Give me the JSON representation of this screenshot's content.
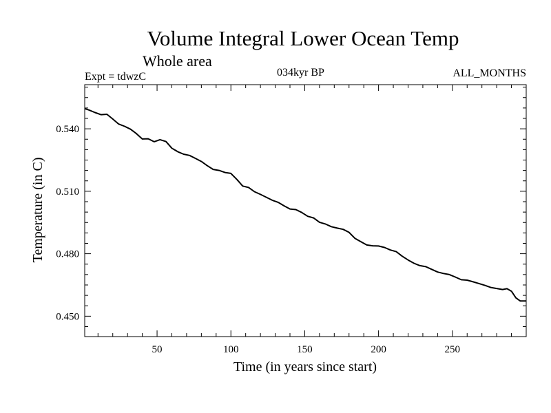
{
  "header": {
    "title": "Volume Integral Lower Ocean Temp",
    "subtitle": "Whole area",
    "left_note": "Expt = tdwzC",
    "center_note": "034kyr BP",
    "right_note": "ALL_MONTHS"
  },
  "chart_data": {
    "type": "line",
    "title": "Volume Integral Lower Ocean Temp",
    "subtitle": "Whole area",
    "xlabel": "Time (in years since start)",
    "ylabel": "Temperature (in C)",
    "xlim": [
      1,
      300
    ],
    "ylim": [
      0.4402,
      0.5612
    ],
    "x_ticks": [
      50,
      100,
      150,
      200,
      250
    ],
    "y_ticks": [
      0.45,
      0.48,
      0.51,
      0.54
    ],
    "y_tick_labels": [
      "0.450",
      "0.480",
      "0.510",
      "0.540"
    ],
    "grid": false,
    "series": [
      {
        "color": "#000000",
        "x": [
          1,
          4,
          8,
          12,
          16,
          20,
          24,
          28,
          32,
          36,
          40,
          44,
          48,
          52,
          56,
          60,
          64,
          68,
          72,
          76,
          80,
          84,
          88,
          92,
          96,
          100,
          104,
          108,
          112,
          116,
          120,
          124,
          128,
          132,
          136,
          140,
          144,
          148,
          152,
          156,
          160,
          164,
          168,
          172,
          176,
          180,
          184,
          188,
          192,
          196,
          200,
          204,
          208,
          212,
          216,
          220,
          224,
          228,
          232,
          236,
          240,
          244,
          248,
          252,
          256,
          260,
          264,
          268,
          272,
          276,
          280,
          284,
          287,
          290,
          293,
          296,
          300
        ],
        "y": [
          0.5497,
          0.549,
          0.5478,
          0.5468,
          0.547,
          0.5447,
          0.5423,
          0.5412,
          0.5398,
          0.5377,
          0.5351,
          0.5352,
          0.5338,
          0.5348,
          0.5339,
          0.5307,
          0.529,
          0.5278,
          0.5272,
          0.5258,
          0.5243,
          0.5223,
          0.5205,
          0.52,
          0.519,
          0.5186,
          0.5157,
          0.5125,
          0.5118,
          0.5098,
          0.5085,
          0.5071,
          0.5057,
          0.5047,
          0.503,
          0.5015,
          0.5012,
          0.4998,
          0.498,
          0.4972,
          0.4951,
          0.4943,
          0.493,
          0.4923,
          0.4917,
          0.4903,
          0.4874,
          0.4858,
          0.4842,
          0.4838,
          0.4837,
          0.483,
          0.4818,
          0.481,
          0.4788,
          0.477,
          0.4754,
          0.4743,
          0.4738,
          0.4725,
          0.4712,
          0.4705,
          0.47,
          0.4688,
          0.4675,
          0.4673,
          0.4665,
          0.4657,
          0.4648,
          0.4638,
          0.4633,
          0.4628,
          0.4632,
          0.462,
          0.4588,
          0.4573,
          0.4573
        ]
      }
    ]
  }
}
